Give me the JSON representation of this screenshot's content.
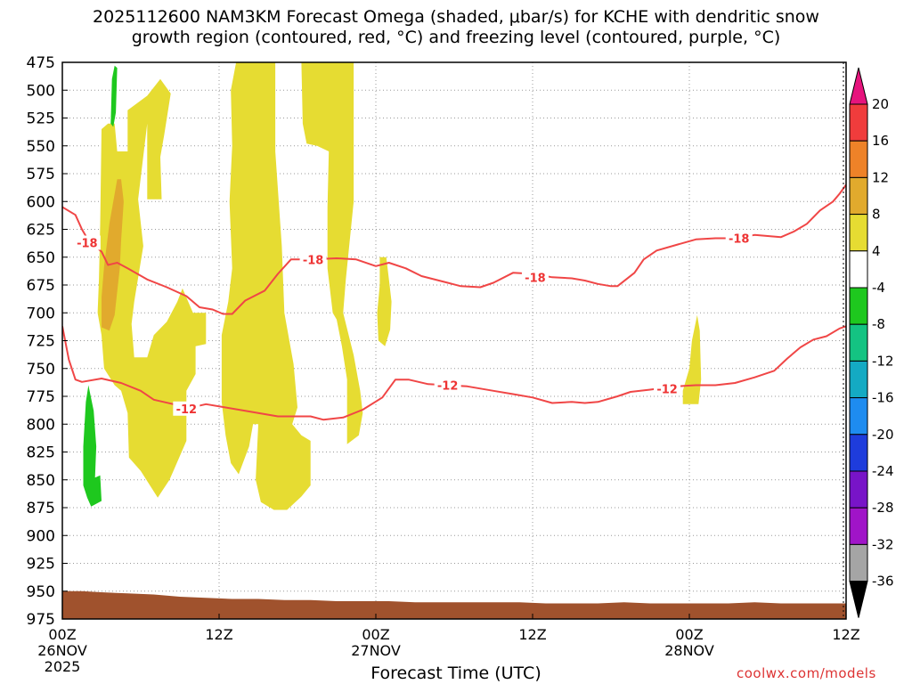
{
  "title_line1": "2025112600 NAM3KM Forecast Omega (shaded, μbar/s) for KCHE with dendritic snow",
  "title_line2": "growth region (contoured, red, °C) and freezing level (contoured, purple, °C)",
  "xlabel": "Forecast Time (UTC)",
  "credit": "coolwx.com/models",
  "colors": {
    "omega_4_8": "#e6dc32",
    "omega_8_12": "#e1aa2d",
    "omega_neg4_neg8": "#1ec81e",
    "contour": "#f04646",
    "terrain": "#a0522d",
    "grid": "#999999"
  },
  "chart_data": {
    "type": "heatmap",
    "ylim": [
      475,
      975
    ],
    "xlim": [
      0,
      60
    ],
    "y_ticks": [
      475,
      500,
      525,
      550,
      575,
      600,
      625,
      650,
      675,
      700,
      725,
      750,
      775,
      800,
      825,
      850,
      875,
      900,
      925,
      950,
      975
    ],
    "x_ticks": [
      {
        "hour": 0,
        "label": "00Z",
        "sub": "26NOV",
        "sub2": "2025"
      },
      {
        "hour": 12,
        "label": "12Z",
        "sub": "",
        "sub2": ""
      },
      {
        "hour": 24,
        "label": "00Z",
        "sub": "27NOV",
        "sub2": ""
      },
      {
        "hour": 36,
        "label": "12Z",
        "sub": "",
        "sub2": ""
      },
      {
        "hour": 48,
        "label": "00Z",
        "sub": "28NOV",
        "sub2": ""
      },
      {
        "hour": 60,
        "label": "12Z",
        "sub": "",
        "sub2": ""
      }
    ],
    "colorbar": {
      "labels": [
        "20",
        "16",
        "12",
        "8",
        "4",
        "-4",
        "-8",
        "-12",
        "-16",
        "-20",
        "-24",
        "-28",
        "-32",
        "-36"
      ],
      "colors": [
        "#f03c3c",
        "#ee8228",
        "#e1aa2d",
        "#e6dc32",
        "#ffffff",
        "#1ec81e",
        "#14c382",
        "#14aac3",
        "#1e8cf0",
        "#1e3cdc",
        "#7814c8",
        "#a014c8",
        "#a5a5a5"
      ],
      "top_color": "#e6147d",
      "bottom_color": "#000000"
    },
    "contours": [
      {
        "value": -18,
        "label": "-18",
        "points": [
          [
            0,
            605
          ],
          [
            1,
            612
          ],
          [
            1.5,
            625
          ],
          [
            2,
            635
          ],
          [
            3,
            645
          ],
          [
            3.5,
            657
          ],
          [
            4.2,
            655
          ],
          [
            5,
            660
          ],
          [
            6.5,
            670
          ],
          [
            8,
            677
          ],
          [
            9.5,
            685
          ],
          [
            10.5,
            695
          ],
          [
            11.5,
            697
          ],
          [
            12.3,
            701
          ],
          [
            13,
            701
          ],
          [
            14,
            689
          ],
          [
            15.5,
            680
          ],
          [
            16.5,
            665
          ],
          [
            17.5,
            652
          ],
          [
            19,
            652
          ],
          [
            21,
            651
          ],
          [
            22.5,
            652
          ],
          [
            24,
            658
          ],
          [
            25,
            655
          ],
          [
            26.3,
            660
          ],
          [
            27.5,
            667
          ],
          [
            29.5,
            673
          ],
          [
            30.5,
            676
          ],
          [
            32,
            677
          ],
          [
            33,
            673
          ],
          [
            34.5,
            664
          ],
          [
            36,
            665
          ],
          [
            37.5,
            668
          ],
          [
            39,
            669
          ],
          [
            40,
            671
          ],
          [
            41,
            674
          ],
          [
            42,
            676
          ],
          [
            42.5,
            676
          ],
          [
            43.8,
            664
          ],
          [
            44.5,
            652
          ],
          [
            45.5,
            644
          ],
          [
            47,
            639
          ],
          [
            48.5,
            634
          ],
          [
            50,
            633
          ],
          [
            51.5,
            633
          ],
          [
            53,
            630
          ],
          [
            54,
            631
          ],
          [
            55,
            632
          ],
          [
            56,
            627
          ],
          [
            57,
            620
          ],
          [
            58,
            608
          ],
          [
            59,
            600
          ],
          [
            59.5,
            593
          ],
          [
            60,
            585
          ]
        ],
        "labels_at": [
          [
            1.9,
            637
          ],
          [
            19.2,
            652
          ],
          [
            36.2,
            668
          ],
          [
            51.8,
            633
          ]
        ]
      },
      {
        "value": -12,
        "label": "-12",
        "points": [
          [
            0,
            712
          ],
          [
            0.5,
            742
          ],
          [
            1,
            760
          ],
          [
            1.5,
            762
          ],
          [
            3,
            759
          ],
          [
            4.5,
            763
          ],
          [
            6,
            770
          ],
          [
            7,
            778
          ],
          [
            8.5,
            782
          ],
          [
            9.5,
            786
          ],
          [
            11,
            782
          ],
          [
            12.5,
            785
          ],
          [
            14.5,
            789
          ],
          [
            16.5,
            793
          ],
          [
            19,
            793
          ],
          [
            20,
            796
          ],
          [
            21.5,
            794
          ],
          [
            23,
            787
          ],
          [
            24.5,
            776
          ],
          [
            25.5,
            760
          ],
          [
            26.5,
            760
          ],
          [
            28,
            764
          ],
          [
            29.5,
            765
          ],
          [
            31,
            766
          ],
          [
            33,
            770
          ],
          [
            34.5,
            773
          ],
          [
            36,
            776
          ],
          [
            37.5,
            781
          ],
          [
            39,
            780
          ],
          [
            40,
            781
          ],
          [
            41,
            780
          ],
          [
            42.5,
            775
          ],
          [
            43.5,
            771
          ],
          [
            45,
            769
          ],
          [
            47,
            766
          ],
          [
            48.5,
            765
          ],
          [
            50,
            765
          ],
          [
            51.5,
            763
          ],
          [
            53,
            758
          ],
          [
            54.5,
            752
          ],
          [
            55.5,
            741
          ],
          [
            56.5,
            731
          ],
          [
            57.5,
            724
          ],
          [
            58.5,
            721
          ],
          [
            59.5,
            714
          ],
          [
            60,
            712
          ]
        ],
        "labels_at": [
          [
            9.5,
            786
          ],
          [
            29.5,
            765
          ],
          [
            46.3,
            768
          ]
        ]
      }
    ],
    "omega_regions": [
      {
        "level": "4 to 8",
        "color": "#e6dc32",
        "points": [
          [
            3,
            535
          ],
          [
            3.5,
            530
          ],
          [
            4,
            530
          ],
          [
            4.2,
            555
          ],
          [
            5,
            555
          ],
          [
            5,
            518
          ],
          [
            6.5,
            505
          ],
          [
            7.5,
            490
          ],
          [
            8.3,
            503
          ],
          [
            7.8,
            540
          ],
          [
            7.5,
            560
          ],
          [
            7.6,
            598
          ],
          [
            6.5,
            598
          ],
          [
            6.5,
            530
          ],
          [
            5.8,
            598
          ],
          [
            6.2,
            640
          ],
          [
            5.5,
            690
          ],
          [
            5.3,
            710
          ],
          [
            5.5,
            740
          ],
          [
            6.5,
            740
          ],
          [
            7,
            720
          ],
          [
            8,
            708
          ],
          [
            8.8,
            690
          ],
          [
            9.2,
            678
          ],
          [
            10,
            700
          ],
          [
            11,
            700
          ],
          [
            11,
            728
          ],
          [
            10.2,
            730
          ],
          [
            10.2,
            755
          ],
          [
            9.5,
            770
          ],
          [
            9.5,
            815
          ],
          [
            8.5,
            842
          ],
          [
            8.2,
            850
          ],
          [
            7.3,
            866
          ],
          [
            6,
            842
          ],
          [
            5.1,
            830
          ],
          [
            5,
            790
          ],
          [
            4.5,
            770
          ],
          [
            4,
            765
          ],
          [
            3.2,
            750
          ],
          [
            3,
            720
          ],
          [
            2.7,
            700
          ],
          [
            2.8,
            670
          ],
          [
            2.9,
            620
          ]
        ]
      },
      {
        "level": "4 to 8",
        "color": "#e6dc32",
        "points": [
          [
            13.3,
            475
          ],
          [
            16.3,
            475
          ],
          [
            16.3,
            555
          ],
          [
            16.8,
            640
          ],
          [
            17,
            700
          ],
          [
            17.7,
            746
          ],
          [
            18,
            785
          ],
          [
            17.6,
            800
          ],
          [
            18.3,
            810
          ],
          [
            19,
            815
          ],
          [
            19,
            855
          ],
          [
            18.3,
            865
          ],
          [
            17.2,
            877
          ],
          [
            16.2,
            877
          ],
          [
            15.2,
            870
          ],
          [
            14.8,
            850
          ],
          [
            15,
            800
          ],
          [
            14.6,
            800
          ],
          [
            14.3,
            820
          ],
          [
            13.5,
            845
          ],
          [
            12.9,
            835
          ],
          [
            12.5,
            810
          ],
          [
            12.2,
            780
          ],
          [
            12.2,
            720
          ],
          [
            12.7,
            690
          ],
          [
            13,
            660
          ],
          [
            12.8,
            600
          ],
          [
            13,
            550
          ],
          [
            12.9,
            500
          ]
        ]
      },
      {
        "level": "4 to 8",
        "color": "#e6dc32",
        "points": [
          [
            18.3,
            475
          ],
          [
            22.3,
            475
          ],
          [
            22.3,
            600
          ],
          [
            21.7,
            670
          ],
          [
            21.5,
            700
          ],
          [
            22.3,
            738
          ],
          [
            22.8,
            770
          ],
          [
            23,
            790
          ],
          [
            22.7,
            810
          ],
          [
            21.8,
            818
          ],
          [
            21.8,
            760
          ],
          [
            21.4,
            730
          ],
          [
            21,
            706
          ],
          [
            20.7,
            700
          ],
          [
            20.3,
            660
          ],
          [
            20.3,
            605
          ],
          [
            20.4,
            555
          ],
          [
            19.5,
            550
          ],
          [
            18.7,
            548
          ],
          [
            18.4,
            530
          ]
        ]
      },
      {
        "level": "4 to 8",
        "color": "#e6dc32",
        "points": [
          [
            24.3,
            650
          ],
          [
            24.8,
            650
          ],
          [
            25,
            670
          ],
          [
            25.2,
            690
          ],
          [
            25.1,
            715
          ],
          [
            24.7,
            730
          ],
          [
            24.2,
            725
          ],
          [
            24.1,
            700
          ],
          [
            24.3,
            675
          ]
        ]
      },
      {
        "level": "4 to 8",
        "color": "#e6dc32",
        "points": [
          [
            48.6,
            702
          ],
          [
            48.8,
            716
          ],
          [
            48.9,
            760
          ],
          [
            48.7,
            782
          ],
          [
            47.5,
            782
          ],
          [
            47.5,
            770
          ],
          [
            48,
            750
          ],
          [
            48.2,
            725
          ]
        ]
      },
      {
        "level": "8 to 12",
        "color": "#e1aa2d",
        "points": [
          [
            4.2,
            580
          ],
          [
            4.5,
            580
          ],
          [
            4.7,
            600
          ],
          [
            4.5,
            635
          ],
          [
            4.4,
            660
          ],
          [
            4,
            702
          ],
          [
            3.6,
            716
          ],
          [
            3,
            713
          ],
          [
            3,
            686
          ],
          [
            3.2,
            658
          ],
          [
            3.6,
            620
          ],
          [
            3.9,
            600
          ]
        ]
      },
      {
        "level": "-4 to -8",
        "color": "#1ec81e",
        "points": [
          [
            4,
            478
          ],
          [
            4.2,
            480
          ],
          [
            4.1,
            520
          ],
          [
            3.9,
            533
          ],
          [
            3.7,
            530
          ],
          [
            3.8,
            490
          ]
        ]
      },
      {
        "level": "-4 to -8",
        "color": "#1ec81e",
        "points": [
          [
            2,
            765
          ],
          [
            2.4,
            788
          ],
          [
            2.6,
            820
          ],
          [
            2.5,
            848
          ],
          [
            2.9,
            846
          ],
          [
            3,
            869
          ],
          [
            2.2,
            874
          ],
          [
            1.9,
            866
          ],
          [
            1.6,
            855
          ],
          [
            1.6,
            820
          ],
          [
            1.8,
            780
          ]
        ]
      }
    ],
    "terrain_surface": [
      [
        0,
        950
      ],
      [
        1.5,
        950
      ],
      [
        3,
        951
      ],
      [
        5,
        952
      ],
      [
        7,
        953
      ],
      [
        9,
        955
      ],
      [
        11,
        956
      ],
      [
        13,
        957
      ],
      [
        15,
        957
      ],
      [
        17,
        958
      ],
      [
        19,
        958
      ],
      [
        21,
        959
      ],
      [
        23,
        959
      ],
      [
        25,
        959
      ],
      [
        27,
        960
      ],
      [
        29,
        960
      ],
      [
        31,
        960
      ],
      [
        33,
        960
      ],
      [
        35,
        960
      ],
      [
        37,
        961
      ],
      [
        39,
        961
      ],
      [
        41,
        961
      ],
      [
        43,
        960
      ],
      [
        45,
        961
      ],
      [
        47,
        961
      ],
      [
        49,
        961
      ],
      [
        51,
        961
      ],
      [
        53,
        960
      ],
      [
        55,
        961
      ],
      [
        57,
        961
      ],
      [
        59,
        961
      ],
      [
        60,
        961
      ]
    ]
  }
}
